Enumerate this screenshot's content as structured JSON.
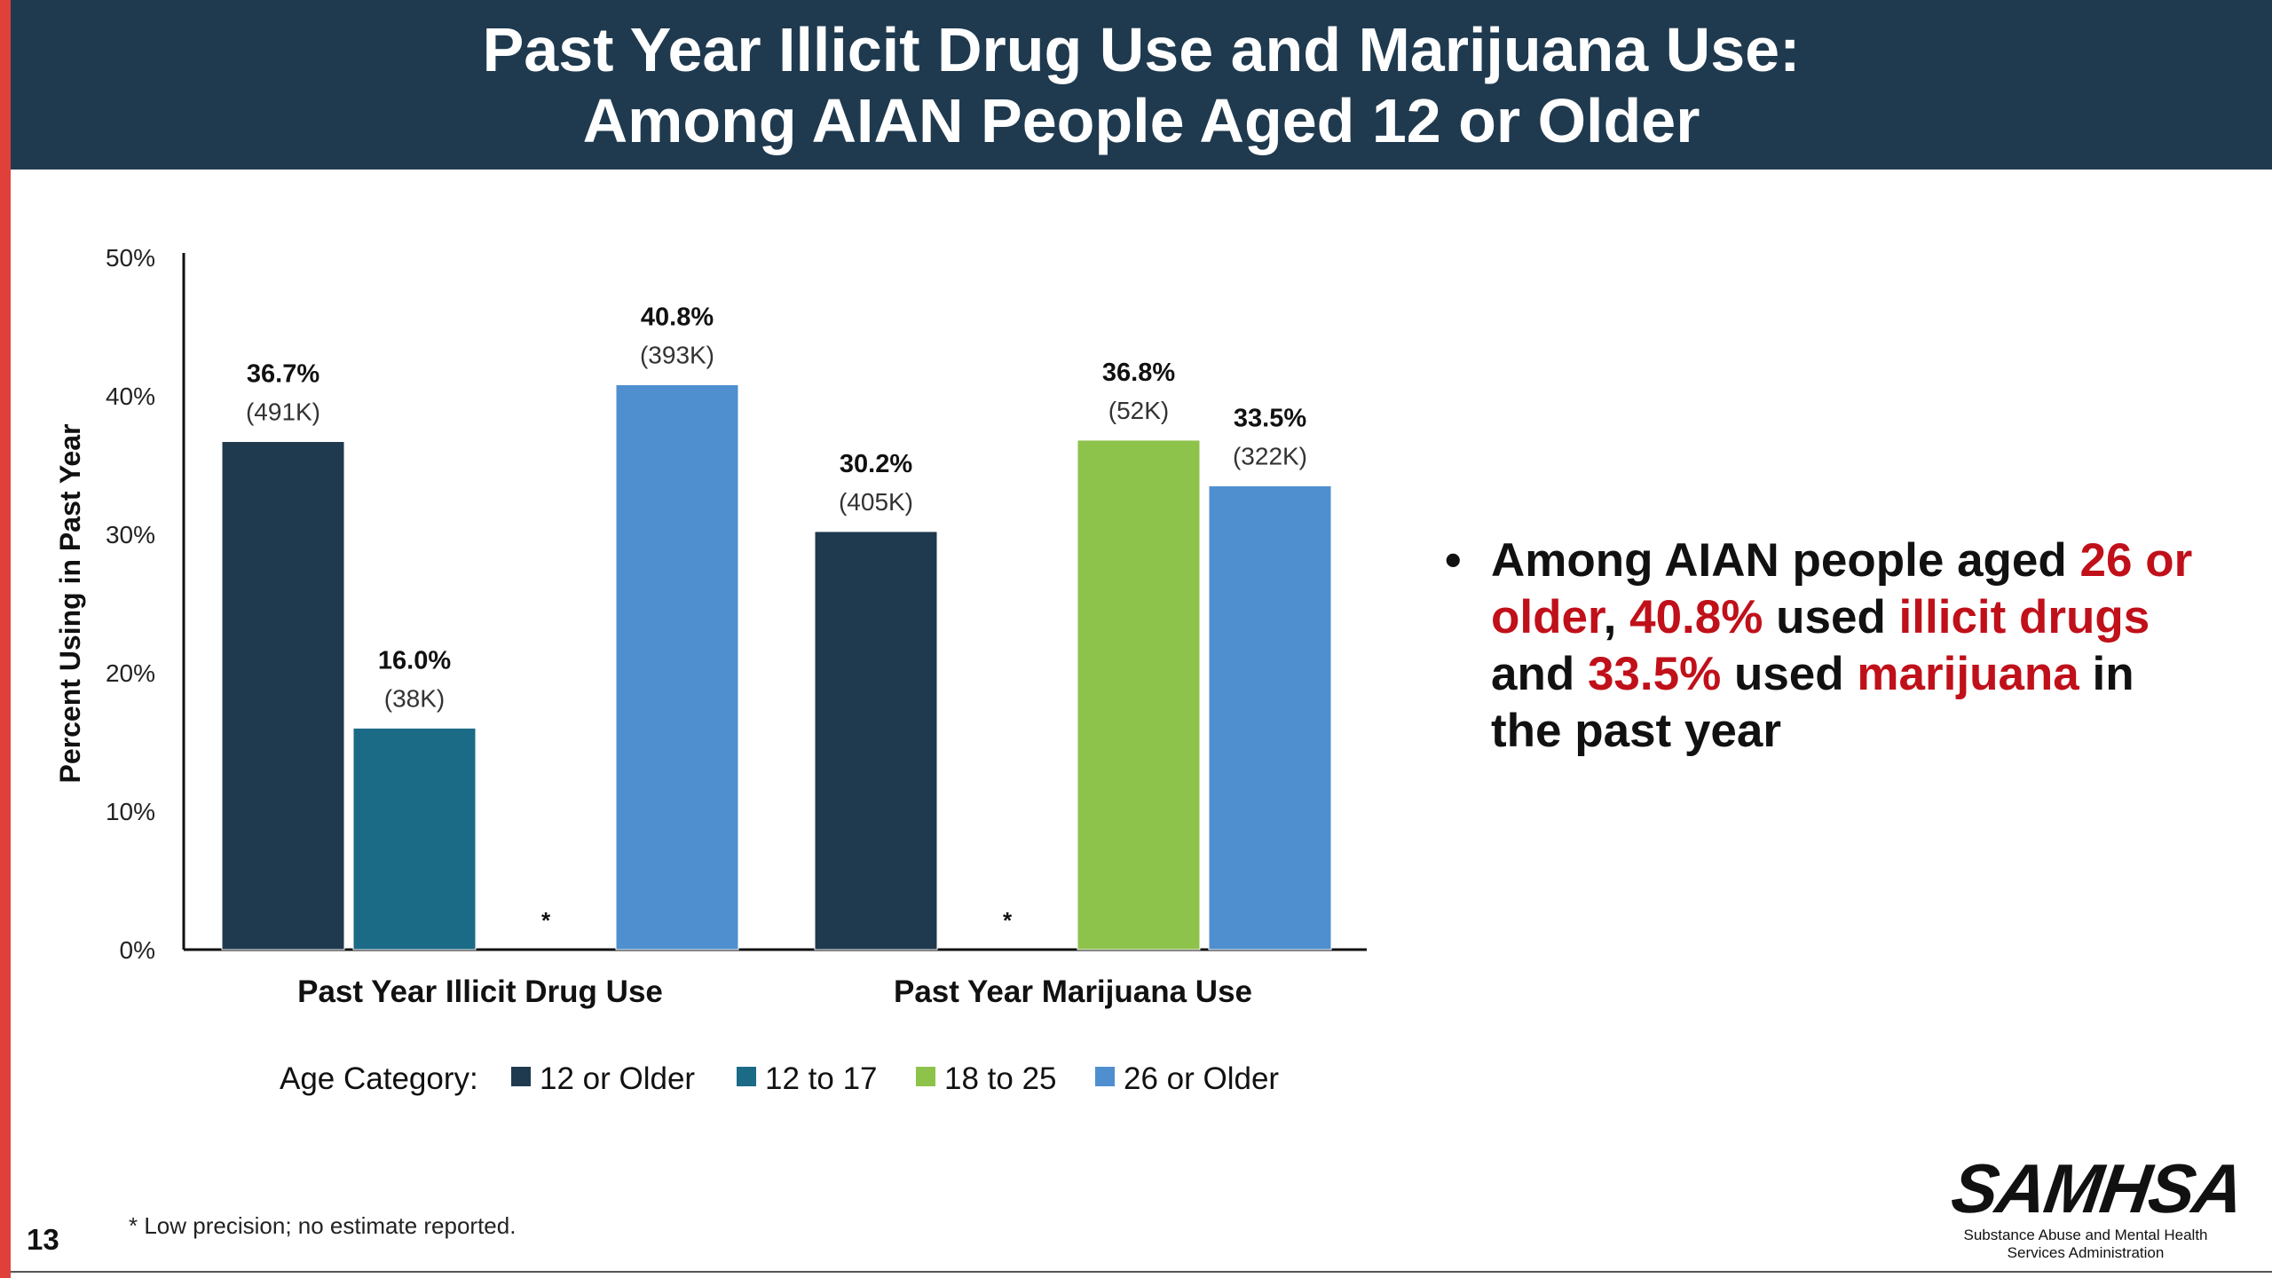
{
  "title": {
    "line1": "Past Year Illicit Drug Use and Marijuana Use:",
    "line2": "Among AIAN People Aged 12 or Older"
  },
  "chart_data": {
    "type": "bar",
    "categories": [
      "Past Year Illicit Drug Use",
      "Past Year Marijuana Use"
    ],
    "series": [
      {
        "name": "12 or Older",
        "color": "#1f3a4f",
        "values": [
          36.7,
          30.2
        ],
        "counts": [
          "(491K)",
          "(405K)"
        ]
      },
      {
        "name": "12 to 17",
        "color": "#1b6a86",
        "values": [
          16.0,
          null
        ],
        "counts": [
          "(38K)",
          null
        ]
      },
      {
        "name": "18 to 25",
        "color": "#8ec34b",
        "values": [
          null,
          36.8
        ],
        "counts": [
          null,
          "(52K)"
        ]
      },
      {
        "name": "26 or Older",
        "color": "#4f8fd0",
        "values": [
          40.8,
          33.5
        ],
        "counts": [
          "(393K)",
          "(322K)"
        ]
      }
    ],
    "ylabel": "Percent Using in Past Year",
    "yticks": [
      "0%",
      "10%",
      "20%",
      "30%",
      "40%",
      "50%"
    ],
    "ylim": [
      0,
      50
    ],
    "legend_title": "Age Category:",
    "legend_position": "bottom",
    "missing_marker": "*",
    "grid": false
  },
  "bullet": {
    "marker": "•",
    "parts": [
      {
        "text": "Among AIAN people aged ",
        "highlight": false
      },
      {
        "text": "26 or older",
        "highlight": true
      },
      {
        "text": ", ",
        "highlight": false
      },
      {
        "text": "40.8%",
        "highlight": true
      },
      {
        "text": " used ",
        "highlight": false
      },
      {
        "text": "illicit drugs",
        "highlight": true
      },
      {
        "text": " and ",
        "highlight": false
      },
      {
        "text": "33.5%",
        "highlight": true
      },
      {
        "text": " used ",
        "highlight": false
      },
      {
        "text": "marijuana",
        "highlight": true
      },
      {
        "text": " in the past year",
        "highlight": false
      }
    ]
  },
  "footnote": "* Low precision; no estimate reported.",
  "slide_number": "13",
  "logo": {
    "word": "SAMHSA",
    "subtitle_line1": "Substance Abuse and Mental Health",
    "subtitle_line2": "Services Administration"
  },
  "colors": {
    "title_bar": "#1f3a4f",
    "accent_stripe": "#e0403a",
    "highlight_text": "#c0101a"
  }
}
